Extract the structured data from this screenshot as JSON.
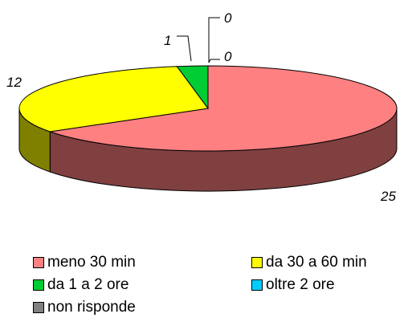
{
  "chart_data": {
    "type": "pie",
    "style": "3d",
    "categories": [
      "meno 30 min",
      "da 30 a 60 min",
      "da 1 a 2 ore",
      "oltre 2 ore",
      "non risponde"
    ],
    "values": [
      25,
      12,
      1,
      0,
      0
    ],
    "colors": [
      "#ff8080",
      "#ffff00",
      "#00cc33",
      "#00ccff",
      "#808080"
    ],
    "data_labels": [
      "25",
      "12",
      "1",
      "0",
      "0"
    ],
    "legend_position": "bottom"
  }
}
